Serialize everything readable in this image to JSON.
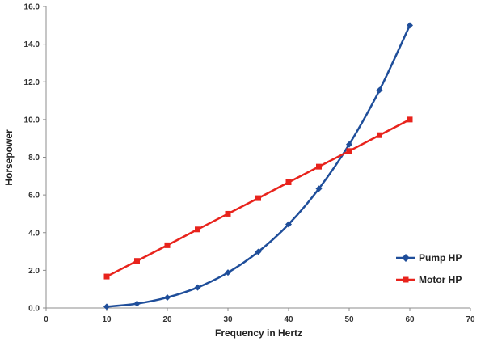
{
  "chart_data": {
    "type": "line",
    "title": "",
    "xlabel": "Frequency in Hertz",
    "ylabel": "Horsepower",
    "xlim": [
      0,
      70
    ],
    "ylim": [
      0,
      16
    ],
    "xticks": [
      0,
      10,
      20,
      30,
      40,
      50,
      60,
      70
    ],
    "xtick_labels": [
      "0",
      "10",
      "20",
      "30",
      "40",
      "50",
      "60",
      "70"
    ],
    "yticks": [
      0,
      2,
      4,
      6,
      8,
      10,
      12,
      14,
      16
    ],
    "ytick_labels": [
      "0.0",
      "2.0",
      "4.0",
      "6.0",
      "8.0",
      "10.0",
      "12.0",
      "14.0",
      "16.0"
    ],
    "grid": false,
    "legend_position": "bottom-right",
    "x": [
      10,
      15,
      20,
      25,
      30,
      35,
      40,
      45,
      50,
      55,
      60
    ],
    "series": [
      {
        "name": "Pump HP",
        "color": "#1f4e9a",
        "marker": "diamond",
        "smooth": true,
        "values": [
          0.07,
          0.23,
          0.56,
          1.09,
          1.88,
          2.98,
          4.44,
          6.33,
          8.68,
          11.56,
          15.0
        ]
      },
      {
        "name": "Motor HP",
        "color": "#e8231c",
        "marker": "square",
        "smooth": false,
        "values": [
          1.67,
          2.5,
          3.33,
          4.17,
          5.0,
          5.83,
          6.67,
          7.5,
          8.33,
          9.17,
          10.0
        ]
      }
    ]
  }
}
